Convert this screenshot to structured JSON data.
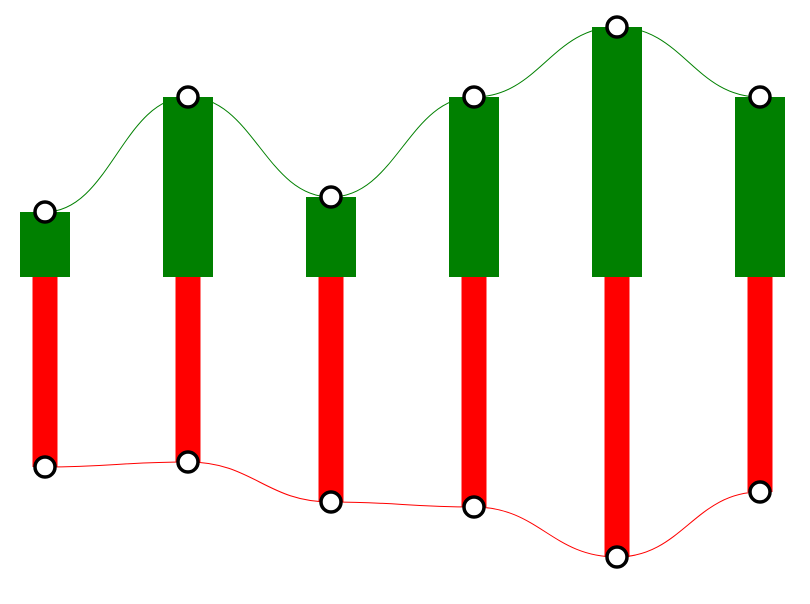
{
  "chart_data": {
    "type": "bar",
    "title": "",
    "xlabel": "",
    "ylabel": "",
    "categories": [
      "",
      "",
      "",
      "",
      "",
      ""
    ],
    "grid": false,
    "legend": "none",
    "ylim": [
      -280,
      250
    ],
    "series": [
      {
        "values": [
          65,
          180,
          80,
          180,
          250,
          180
        ],
        "color": "#008000"
      },
      {
        "values": [
          -190,
          -185,
          -225,
          -230,
          -280,
          -215
        ],
        "color": "#ff0000"
      }
    ],
    "marker_fill": "#ffffff",
    "marker_stroke": "#000000"
  }
}
